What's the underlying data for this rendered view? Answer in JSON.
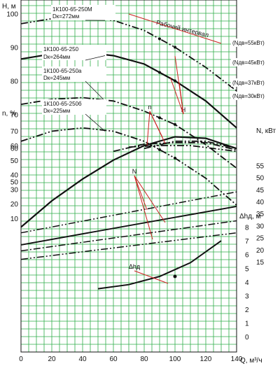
{
  "colors": {
    "grid": "#2fae4a",
    "red": "#cc2020",
    "ink": "#111111",
    "background": "#ffffff"
  },
  "chart_data": {
    "type": "line",
    "axes": {
      "x": {
        "label": "Q, м³/ч",
        "min": 0,
        "max": 140,
        "ticks": [
          "0",
          "20",
          "40",
          "60",
          "80",
          "100",
          "120",
          "140"
        ]
      },
      "H": {
        "label": "H, м",
        "min": 0,
        "max": 100,
        "ticks": [
          "100",
          "90",
          "80",
          "70",
          "60",
          "50"
        ]
      },
      "n": {
        "label": "n, %",
        "min": 0,
        "max": 70,
        "ticks": [
          "70",
          "60",
          "50",
          "40",
          "30",
          "20",
          "10"
        ]
      },
      "N": {
        "label": "N, кВт",
        "min": 15,
        "max": 55,
        "ticks": [
          "55",
          "50",
          "45",
          "40",
          "35",
          "30",
          "25",
          "20",
          "15"
        ]
      },
      "dh": {
        "label": "Δhд, м",
        "min": 0,
        "max": 8,
        "ticks": [
          "8",
          "7",
          "6",
          "5",
          "4",
          "3",
          "2",
          "1",
          "0"
        ]
      }
    },
    "grid": true,
    "working_range": {
      "label": "Рабочий интервал",
      "q_min": 70,
      "q_max": 130
    },
    "group_labels": {
      "H": "H",
      "n": "n",
      "N": "N",
      "dh": "Δhд"
    },
    "power_labels": [
      "(Nдв=55кВт)",
      "(Nдв=45кВт)",
      "(Nдв=37кВт)",
      "(Nдв=30кВт)"
    ],
    "pumps": [
      {
        "name": "1К100-65-250М",
        "diameter": "Dк=272мм",
        "style": "dashdotdot",
        "H": {
          "q": [
            0,
            20,
            40,
            60,
            80,
            100,
            120,
            140
          ],
          "v": [
            97,
            98.5,
            99,
            98,
            95,
            90,
            84,
            77
          ]
        },
        "n": {
          "q": [
            80,
            100,
            120,
            140
          ],
          "v": [
            58,
            63,
            63,
            58
          ]
        },
        "N": {
          "q": [
            0,
            140
          ],
          "v": [
            27,
            44
          ]
        }
      },
      {
        "name": "1К100-65-250",
        "diameter": "Dк=264мм",
        "style": "solid",
        "H": {
          "q": [
            0,
            20,
            40,
            60,
            80,
            100,
            120,
            140
          ],
          "v": [
            86.5,
            88,
            88.5,
            87.5,
            85,
            80,
            74,
            66
          ]
        },
        "n": {
          "q": [
            0,
            20,
            40,
            60,
            80,
            100,
            120,
            140
          ],
          "v": [
            4,
            22,
            37,
            50,
            60,
            66,
            65,
            58
          ]
        },
        "N": {
          "q": [
            0,
            140
          ],
          "v": [
            22,
            38
          ]
        }
      },
      {
        "name": "1К100-65-250а",
        "diameter": "Dк=245мм",
        "style": "dashdot",
        "H": {
          "q": [
            0,
            20,
            40,
            60,
            80,
            100,
            120,
            140
          ],
          "v": [
            73,
            74.5,
            75,
            74,
            71,
            67,
            61,
            54
          ]
        },
        "n": {
          "q": [
            60,
            80,
            100,
            120,
            140
          ],
          "v": [
            56,
            61,
            62,
            62,
            57
          ]
        },
        "N": {
          "q": [
            0,
            140
          ],
          "v": [
            19.5,
            32
          ]
        }
      },
      {
        "name": "1К100-65-250б",
        "diameter": "Dк=225мм",
        "style": "dashdotdot",
        "H": {
          "q": [
            0,
            20,
            40,
            60,
            80,
            100,
            120,
            140
          ],
          "v": [
            62,
            65,
            66,
            65,
            62,
            57,
            51,
            43
          ]
        },
        "n": {
          "q": [
            70,
            90,
            110,
            140
          ],
          "v": [
            59,
            60,
            60,
            56
          ]
        },
        "N": {
          "q": [
            0,
            140
          ],
          "v": [
            16,
            27
          ]
        }
      }
    ],
    "npsh": {
      "q": [
        50,
        70,
        90,
        110,
        130
      ],
      "v": [
        3.5,
        3.8,
        4.4,
        5.4,
        7.0
      ]
    }
  }
}
